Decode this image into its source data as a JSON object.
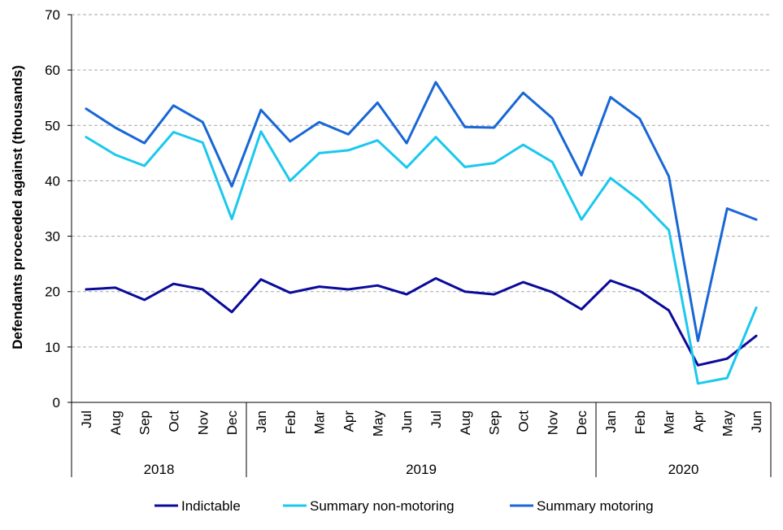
{
  "chart_data": {
    "type": "line",
    "title": "",
    "ylabel": "Defendants proceeded against (thousands)",
    "xlabel": "",
    "ylim": [
      0,
      70
    ],
    "yticks": [
      0,
      10,
      20,
      30,
      40,
      50,
      60,
      70
    ],
    "grid": true,
    "legend_position": "bottom",
    "categories": [
      "Jul",
      "Aug",
      "Sep",
      "Oct",
      "Nov",
      "Dec",
      "Jan",
      "Feb",
      "Mar",
      "Apr",
      "May",
      "Jun",
      "Jul",
      "Aug",
      "Sep",
      "Oct",
      "Nov",
      "Dec",
      "Jan",
      "Feb",
      "Mar",
      "Apr",
      "May",
      "Jun"
    ],
    "year_groups": [
      {
        "label": "2018",
        "start": 0,
        "end": 5
      },
      {
        "label": "2019",
        "start": 6,
        "end": 17
      },
      {
        "label": "2020",
        "start": 18,
        "end": 23
      }
    ],
    "series": [
      {
        "name": "Indictable",
        "color": "#0a0a9a",
        "values": [
          20.4,
          20.7,
          18.5,
          21.4,
          20.4,
          16.3,
          22.2,
          19.8,
          20.9,
          20.4,
          21.1,
          19.5,
          22.4,
          20.0,
          19.5,
          21.7,
          19.9,
          16.8,
          22.0,
          20.1,
          16.6,
          6.7,
          7.9,
          12.0
        ]
      },
      {
        "name": "Summary non-motoring",
        "color": "#1ac8ee",
        "values": [
          47.9,
          44.7,
          42.7,
          48.8,
          46.9,
          33.1,
          48.9,
          40.0,
          45.0,
          45.5,
          47.3,
          42.4,
          47.9,
          42.5,
          43.2,
          46.5,
          43.4,
          33.0,
          40.5,
          36.5,
          31.1,
          3.4,
          4.4,
          17.1
        ]
      },
      {
        "name": "Summary motoring",
        "color": "#1767d6",
        "values": [
          53.0,
          49.6,
          46.8,
          53.6,
          50.6,
          39.0,
          52.8,
          47.1,
          50.6,
          48.4,
          54.1,
          46.8,
          57.8,
          49.7,
          49.6,
          55.9,
          51.3,
          41.0,
          55.1,
          51.2,
          40.8,
          11.1,
          35.0,
          33.0
        ]
      }
    ]
  }
}
